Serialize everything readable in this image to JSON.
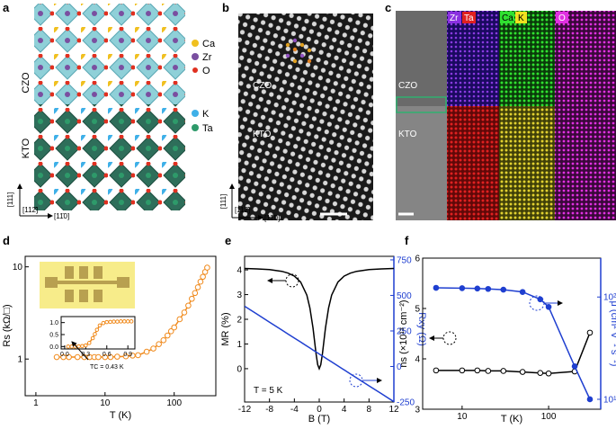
{
  "panels": {
    "a": {
      "label": "a",
      "legend": [
        "Ca",
        "Zr",
        "O",
        "K",
        "Ta"
      ],
      "layers": [
        "CZO",
        "KTO"
      ],
      "axes": [
        "[111]",
        "[112̄]",
        "[11̄0]"
      ]
    },
    "b": {
      "label": "b",
      "layers": [
        "CZO",
        "KTO"
      ],
      "axes": [
        "[111]",
        "[112̄]",
        "[11̄0]"
      ]
    },
    "c": {
      "label": "c",
      "maps": [
        "Zr",
        "Ta",
        "Ca",
        "K",
        "O"
      ],
      "layers": [
        "CZO",
        "KTO"
      ]
    }
  },
  "chart_data": [
    {
      "type": "scatter",
      "panel": "d",
      "xlabel": "T (K)",
      "ylabel": "Rs (kΩ/□)",
      "xlog": true,
      "ylog": true,
      "xlim": [
        0.7,
        400
      ],
      "ylim": [
        0.4,
        13
      ],
      "xticks": [
        1,
        10,
        100
      ],
      "yticks": [
        1,
        10
      ],
      "x": [
        2,
        2.5,
        3,
        4,
        5,
        6,
        7,
        8,
        10,
        12,
        15,
        20,
        25,
        30,
        40,
        50,
        60,
        70,
        80,
        90,
        100,
        120,
        140,
        160,
        180,
        200,
        220,
        240,
        260,
        280,
        300
      ],
      "series": [
        {
          "color": "#f08a1c",
          "marker": "open",
          "values": [
            1.05,
            1.05,
            1.05,
            1.05,
            1.05,
            1.05,
            1.05,
            1.05,
            1.05,
            1.05,
            1.06,
            1.07,
            1.09,
            1.1,
            1.2,
            1.3,
            1.45,
            1.6,
            1.8,
            2.0,
            2.2,
            2.7,
            3.2,
            3.8,
            4.5,
            5.2,
            6.0,
            6.9,
            7.8,
            8.8,
            9.8
          ]
        }
      ]
    },
    {
      "type": "scatter",
      "annotation": "TC = 0.43 K",
      "xlim": [
        -0.05,
        1.0
      ],
      "ylim": [
        -0.1,
        1.25
      ],
      "xticks": [
        {
          "value": 0,
          "label": "0.0"
        },
        {
          "value": 0.3,
          "label": "0.3"
        },
        {
          "value": 0.6,
          "label": "0.6"
        },
        {
          "value": 0.9,
          "label": "0.9"
        }
      ],
      "yticks": [
        {
          "value": 0,
          "label": "0.0"
        },
        {
          "value": 0.5,
          "label": "0.5"
        },
        {
          "value": 1,
          "label": "1.0"
        }
      ],
      "x": [
        0.05,
        0.1,
        0.15,
        0.2,
        0.25,
        0.3,
        0.35,
        0.4,
        0.43,
        0.46,
        0.5,
        0.55,
        0.6,
        0.65,
        0.7,
        0.75,
        0.8,
        0.85,
        0.9,
        0.95
      ],
      "series": [
        {
          "color": "#f08a1c",
          "marker": "open",
          "values": [
            0.0,
            0.0,
            0.0,
            0.01,
            0.02,
            0.05,
            0.15,
            0.35,
            0.52,
            0.7,
            0.88,
            0.98,
            1.02,
            1.03,
            1.04,
            1.04,
            1.05,
            1.05,
            1.05,
            1.05
          ]
        }
      ]
    },
    {
      "type": "line",
      "panel": "e",
      "xlabel": "B (T)",
      "ylabel": "MR (%)",
      "y2label": "Rxy (Ω)",
      "annotation": "T = 5 K",
      "xlim": [
        -12,
        12
      ],
      "ylim": [
        -1.35,
        4.55
      ],
      "y2lim": [
        -250,
        775
      ],
      "xticks": [
        -12,
        -8,
        -4,
        0,
        4,
        8,
        12
      ],
      "yticks": [
        0,
        1,
        2,
        3,
        4
      ],
      "y2ticks": [
        -250,
        0,
        250,
        500,
        750
      ],
      "y2color": "#1f3fd0",
      "x": [
        -12,
        -10,
        -8,
        -6,
        -5,
        -4,
        -3,
        -2,
        -1.5,
        -1,
        -0.5,
        -0.25,
        0,
        0.25,
        0.5,
        1,
        1.5,
        2,
        3,
        4,
        5,
        6,
        8,
        10,
        12
      ],
      "series": [
        {
          "color": "#000000",
          "values": [
            4.06,
            4.04,
            4.01,
            3.94,
            3.87,
            3.75,
            3.51,
            2.98,
            2.46,
            1.64,
            0.59,
            0.16,
            0,
            0.16,
            0.59,
            1.64,
            2.46,
            2.98,
            3.51,
            3.75,
            3.87,
            3.94,
            4.01,
            4.04,
            4.06
          ]
        },
        {
          "color": "#1f3fd0",
          "axis": "y2",
          "values": [
            424,
            368,
            312,
            256,
            228,
            200,
            172,
            144,
            130,
            116,
            102,
            95,
            88,
            81,
            74,
            60,
            46,
            32,
            4,
            -24,
            -52,
            -80,
            -136,
            -192,
            -248
          ]
        }
      ]
    },
    {
      "type": "line",
      "panel": "f",
      "xlabel": "T (K)",
      "ylabel": "ns (×10¹³ cm⁻²)",
      "y2label": "μ (cm² V⁻¹ s⁻¹)",
      "xlog": true,
      "y2log": true,
      "xlim": [
        3.5,
        400
      ],
      "ylim": [
        3,
        6
      ],
      "y2lim": [
        8,
        240
      ],
      "xticks": [
        10,
        100
      ],
      "yticks": [
        3,
        4,
        5,
        6
      ],
      "y2ticks": [
        {
          "value": 10,
          "label": "10¹"
        },
        {
          "value": 100,
          "label": "10²"
        }
      ],
      "y2color": "#1f3fd0",
      "x": [
        5,
        10,
        15,
        20,
        30,
        50,
        80,
        100,
        200,
        300
      ],
      "series": [
        {
          "color": "#000000",
          "marker": "open",
          "values": [
            3.77,
            3.77,
            3.77,
            3.76,
            3.76,
            3.74,
            3.72,
            3.71,
            3.75,
            4.52
          ]
        },
        {
          "color": "#1f3fd0",
          "marker": "filled",
          "axis": "y2",
          "values": [
            123,
            122,
            121,
            120,
            118,
            112,
            95,
            80,
            21,
            10
          ]
        }
      ]
    }
  ]
}
